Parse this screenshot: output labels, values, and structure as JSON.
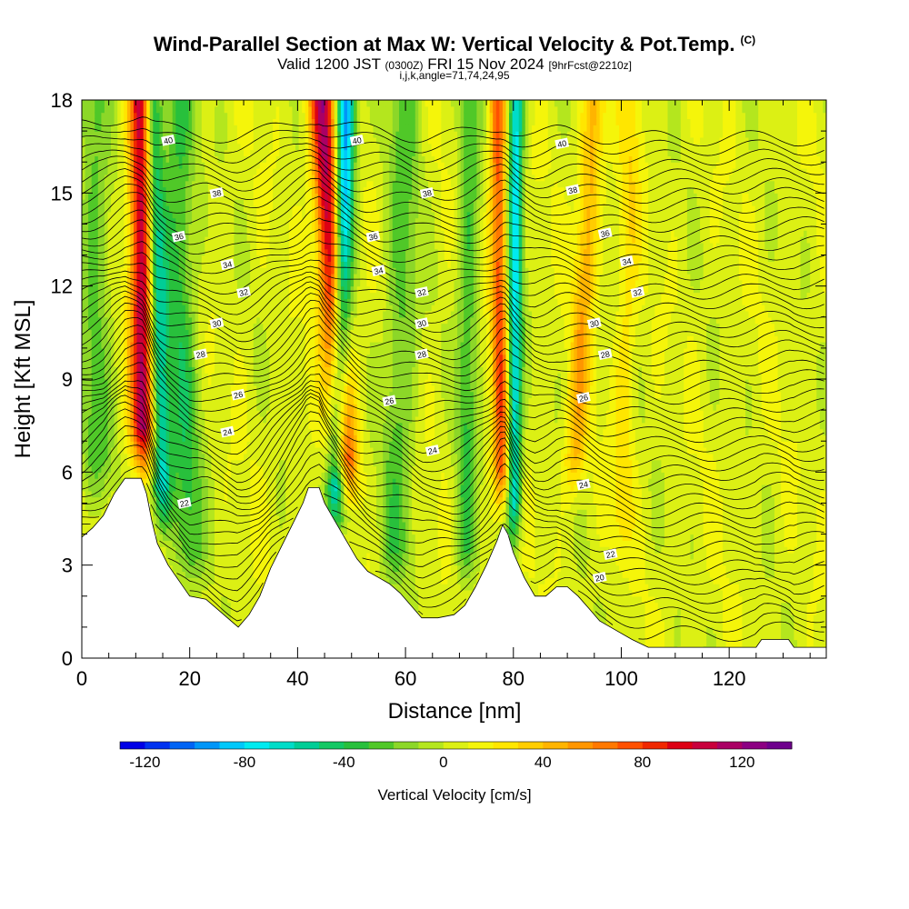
{
  "header": {
    "title": "Wind-Parallel Section at Max W: Vertical Velocity & Pot.Temp.",
    "title_mark": "(C)",
    "valid_prefix": "Valid 1200 JST",
    "valid_utc": "(0300Z)",
    "valid_date": "FRI 15 Nov 2024",
    "forecast": "[9hrFcst@2210z]",
    "indices": "i,j,k,angle=71,74,24,95"
  },
  "chart_data": {
    "type": "heatmap",
    "xlabel": "Distance [nm]",
    "ylabel": "Height [Kft MSL]",
    "xlim": [
      0,
      138
    ],
    "ylim": [
      0,
      18
    ],
    "xticks": [
      "0",
      "20",
      "40",
      "60",
      "80",
      "100",
      "120"
    ],
    "yticks": [
      "0",
      "3",
      "6",
      "9",
      "12",
      "15",
      "18"
    ],
    "terrain_kft": [
      {
        "x": 0,
        "y": 3.9
      },
      {
        "x": 2,
        "y": 4.2
      },
      {
        "x": 4,
        "y": 4.6
      },
      {
        "x": 6,
        "y": 5.3
      },
      {
        "x": 8,
        "y": 5.8
      },
      {
        "x": 11,
        "y": 5.8
      },
      {
        "x": 12,
        "y": 5.3
      },
      {
        "x": 13,
        "y": 4.4
      },
      {
        "x": 14,
        "y": 3.7
      },
      {
        "x": 16,
        "y": 3.0
      },
      {
        "x": 18,
        "y": 2.5
      },
      {
        "x": 20,
        "y": 2.0
      },
      {
        "x": 23,
        "y": 1.9
      },
      {
        "x": 25,
        "y": 1.6
      },
      {
        "x": 27,
        "y": 1.3
      },
      {
        "x": 29,
        "y": 1.0
      },
      {
        "x": 31,
        "y": 1.4
      },
      {
        "x": 33,
        "y": 2.0
      },
      {
        "x": 35,
        "y": 2.9
      },
      {
        "x": 37,
        "y": 3.6
      },
      {
        "x": 39,
        "y": 4.3
      },
      {
        "x": 41,
        "y": 5.0
      },
      {
        "x": 42,
        "y": 5.5
      },
      {
        "x": 44,
        "y": 5.5
      },
      {
        "x": 45,
        "y": 5.0
      },
      {
        "x": 47,
        "y": 4.4
      },
      {
        "x": 49,
        "y": 3.8
      },
      {
        "x": 51,
        "y": 3.2
      },
      {
        "x": 53,
        "y": 2.8
      },
      {
        "x": 55,
        "y": 2.6
      },
      {
        "x": 57,
        "y": 2.4
      },
      {
        "x": 59,
        "y": 2.1
      },
      {
        "x": 61,
        "y": 1.7
      },
      {
        "x": 63,
        "y": 1.3
      },
      {
        "x": 66,
        "y": 1.3
      },
      {
        "x": 69,
        "y": 1.4
      },
      {
        "x": 71,
        "y": 1.7
      },
      {
        "x": 73,
        "y": 2.3
      },
      {
        "x": 75,
        "y": 3.0
      },
      {
        "x": 77,
        "y": 3.8
      },
      {
        "x": 78,
        "y": 4.3
      },
      {
        "x": 79,
        "y": 4.0
      },
      {
        "x": 80,
        "y": 3.4
      },
      {
        "x": 82,
        "y": 2.6
      },
      {
        "x": 84,
        "y": 2.0
      },
      {
        "x": 86,
        "y": 2.0
      },
      {
        "x": 88,
        "y": 2.3
      },
      {
        "x": 90,
        "y": 2.3
      },
      {
        "x": 92,
        "y": 2.0
      },
      {
        "x": 94,
        "y": 1.6
      },
      {
        "x": 96,
        "y": 1.2
      },
      {
        "x": 99,
        "y": 0.9
      },
      {
        "x": 102,
        "y": 0.6
      },
      {
        "x": 105,
        "y": 0.35
      },
      {
        "x": 110,
        "y": 0.35
      },
      {
        "x": 125,
        "y": 0.35
      },
      {
        "x": 126,
        "y": 0.6
      },
      {
        "x": 131,
        "y": 0.6
      },
      {
        "x": 132,
        "y": 0.35
      },
      {
        "x": 138,
        "y": 0.35
      }
    ],
    "updrafts": [
      {
        "x0": 11.5,
        "z0": 6.0,
        "x1": 11.0,
        "z1": 18,
        "peak_cms": 110,
        "width_nm": 2.2
      },
      {
        "x0": 49.0,
        "z0": 5.0,
        "x1": 44.5,
        "z1": 18,
        "peak_cms": 110,
        "width_nm": 2.4
      },
      {
        "x0": 78.0,
        "z0": 4.5,
        "x1": 77.0,
        "z1": 18,
        "peak_cms": 70,
        "width_nm": 1.6
      },
      {
        "x0": 91.0,
        "z0": 5.0,
        "x1": 95.0,
        "z1": 18,
        "peak_cms": 40,
        "width_nm": 2.0
      },
      {
        "x0": 100.0,
        "z0": 3.0,
        "x1": 102.0,
        "z1": 18,
        "peak_cms": 20,
        "width_nm": 2.0
      }
    ],
    "downdrafts": [
      {
        "x0": 15.0,
        "z0": 4.0,
        "x1": 13.0,
        "z1": 18,
        "peak_cms": -70,
        "width_nm": 1.8
      },
      {
        "x0": 47.0,
        "z0": 4.0,
        "x1": 49.0,
        "z1": 18,
        "peak_cms": -110,
        "width_nm": 1.8
      },
      {
        "x0": 80.0,
        "z0": 3.5,
        "x1": 80.5,
        "z1": 18,
        "peak_cms": -80,
        "width_nm": 1.4
      },
      {
        "x0": 20.0,
        "z0": 2.0,
        "x1": 18.0,
        "z1": 12,
        "peak_cms": -40,
        "width_nm": 3.0
      },
      {
        "x0": 58.0,
        "z0": 2.0,
        "x1": 60.0,
        "z1": 18,
        "peak_cms": -30,
        "width_nm": 3.0
      },
      {
        "x0": 71.0,
        "z0": 2.0,
        "x1": 72.0,
        "z1": 18,
        "peak_cms": -35,
        "width_nm": 2.0
      },
      {
        "x0": 3.0,
        "z0": 5.0,
        "x1": 2.0,
        "z1": 18,
        "peak_cms": -30,
        "width_nm": 3.0
      }
    ],
    "theta_contours": [
      {
        "value": 20,
        "label": "20",
        "label_x": 96,
        "label_z": 2.6
      },
      {
        "value": 22,
        "label": "22",
        "label_x": 98,
        "label_z": 3.35
      },
      {
        "value": 24,
        "label": "24",
        "label_x": 93,
        "label_z": 5.6
      },
      {
        "value": 26,
        "label": "26",
        "label_x": 29,
        "label_z": 8.5
      },
      {
        "value": 28,
        "label": "28",
        "label_x": 22,
        "label_z": 9.8
      },
      {
        "value": 30,
        "label": "30",
        "label_x": 25,
        "label_z": 10.8
      },
      {
        "value": 32,
        "label": "32",
        "label_x": 30,
        "label_z": 11.8
      },
      {
        "value": 34,
        "label": "34",
        "label_x": 27,
        "label_z": 12.7
      },
      {
        "value": 36,
        "label": "36",
        "label_x": 18,
        "label_z": 13.6
      },
      {
        "value": 38,
        "label": "38",
        "label_x": 25,
        "label_z": 15.0
      },
      {
        "value": 40,
        "label": "40",
        "label_x": 16,
        "label_z": 16.7
      }
    ],
    "extra_labels": [
      {
        "label": "24",
        "x": 27,
        "z": 7.3
      },
      {
        "label": "22",
        "x": 19,
        "z": 5.0
      },
      {
        "label": "24",
        "x": 65,
        "z": 6.7
      },
      {
        "label": "26",
        "x": 57,
        "z": 8.3
      },
      {
        "label": "28",
        "x": 63,
        "z": 9.8
      },
      {
        "label": "30",
        "x": 63,
        "z": 10.8
      },
      {
        "label": "32",
        "x": 63,
        "z": 11.8
      },
      {
        "label": "34",
        "x": 55,
        "z": 12.5
      },
      {
        "label": "36",
        "x": 54,
        "z": 13.6
      },
      {
        "label": "38",
        "x": 64,
        "z": 15.0
      },
      {
        "label": "40",
        "x": 51,
        "z": 16.7
      },
      {
        "label": "26",
        "x": 93,
        "z": 8.4
      },
      {
        "label": "28",
        "x": 97,
        "z": 9.8
      },
      {
        "label": "30",
        "x": 95,
        "z": 10.8
      },
      {
        "label": "32",
        "x": 103,
        "z": 11.8
      },
      {
        "label": "34",
        "x": 101,
        "z": 12.8
      },
      {
        "label": "36",
        "x": 97,
        "z": 13.7
      },
      {
        "label": "38",
        "x": 91,
        "z": 15.1
      },
      {
        "label": "40",
        "x": 89,
        "z": 16.6
      }
    ]
  },
  "colorbar": {
    "label": "Vertical Velocity [cm/s]",
    "min": -130,
    "max": 140,
    "ticks": [
      "-120",
      "-80",
      "-40",
      "0",
      "40",
      "80",
      "120"
    ],
    "tick_values": [
      -120,
      -80,
      -40,
      0,
      40,
      80,
      120
    ],
    "colors": [
      "#0000e6",
      "#0032f0",
      "#0064f5",
      "#0096f8",
      "#00c8fa",
      "#00ebf0",
      "#00dcc8",
      "#00cd96",
      "#14c864",
      "#28c03c",
      "#50c828",
      "#8cd728",
      "#b4e61e",
      "#dcf014",
      "#f5f50a",
      "#ffe600",
      "#ffcd00",
      "#ffb400",
      "#ff9600",
      "#ff7800",
      "#ff5000",
      "#f02800",
      "#dc0014",
      "#c8003c",
      "#aa0064",
      "#8c0082",
      "#6e008c"
    ]
  }
}
